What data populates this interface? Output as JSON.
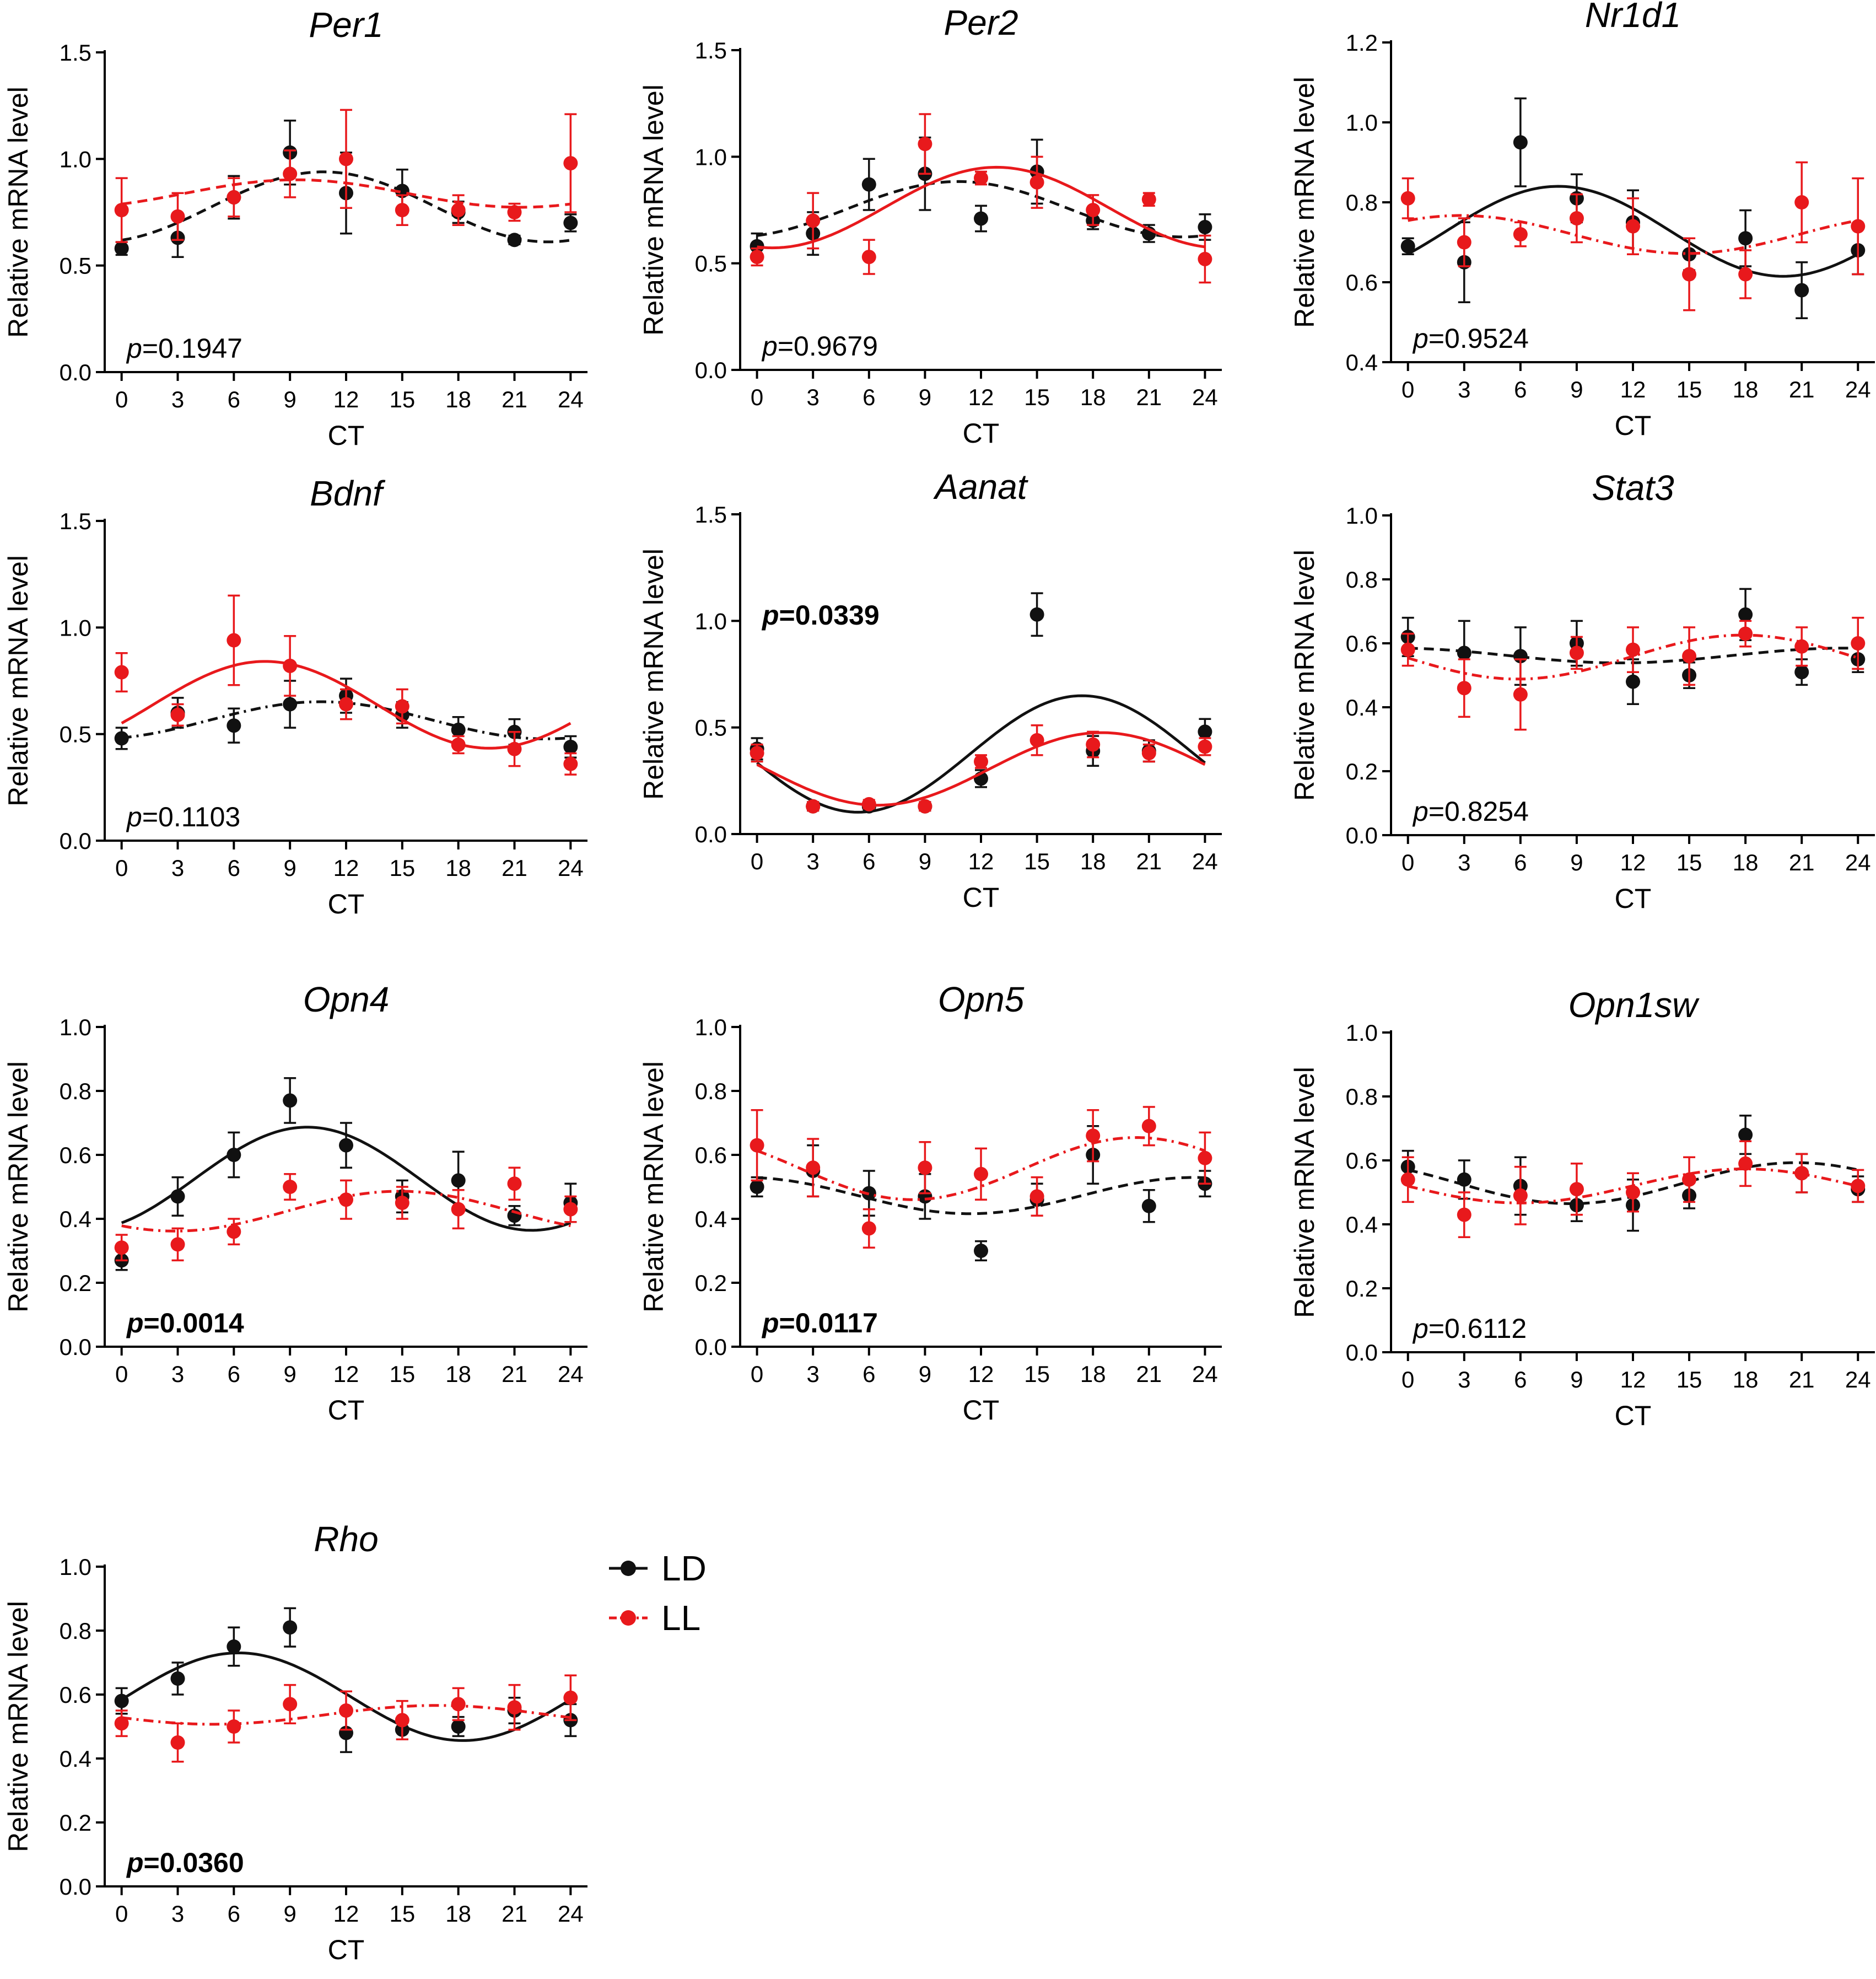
{
  "colors": {
    "LD": "#111111",
    "LL": "#e8191c"
  },
  "legend": [
    {
      "key": "LD",
      "label": "LD",
      "style": "solid"
    },
    {
      "key": "LL",
      "label": "LL",
      "style": "dashdot"
    }
  ],
  "chart_data": [
    {
      "type": "scatter",
      "title": "Per1",
      "xlabel": "CT",
      "ylabel": "Relative mRNA level",
      "x": [
        0,
        3,
        6,
        9,
        12,
        15,
        18,
        21,
        24
      ],
      "xticks": [
        0,
        3,
        6,
        9,
        12,
        15,
        18,
        21,
        24
      ],
      "ylim": [
        0,
        1.5
      ],
      "yticks": [
        0,
        0.5,
        1.0,
        1.5
      ],
      "p_prefix": "p",
      "p_value": "=0.1947",
      "p_significant": false,
      "series": [
        {
          "name": "LD",
          "values": [
            0.58,
            0.63,
            0.82,
            1.03,
            0.84,
            0.85,
            0.75,
            0.62,
            0.7
          ],
          "errors": [
            0.03,
            0.09,
            0.1,
            0.15,
            0.19,
            0.1,
            0.05,
            0.02,
            0.04
          ],
          "fit": "dashed"
        },
        {
          "name": "LL",
          "values": [
            0.76,
            0.73,
            0.82,
            0.93,
            1.0,
            0.76,
            0.76,
            0.75,
            0.98
          ],
          "errors": [
            0.15,
            0.11,
            0.09,
            0.11,
            0.23,
            0.07,
            0.07,
            0.04,
            0.23
          ],
          "fit": "dashed"
        }
      ]
    },
    {
      "type": "scatter",
      "title": "Per2",
      "xlabel": "CT",
      "ylabel": "Relative mRNA level",
      "x": [
        0,
        3,
        6,
        9,
        12,
        15,
        18,
        21,
        24
      ],
      "xticks": [
        0,
        3,
        6,
        9,
        12,
        15,
        18,
        21,
        24
      ],
      "ylim": [
        0,
        1.5
      ],
      "yticks": [
        0,
        0.5,
        1.0,
        1.5
      ],
      "p_prefix": "p",
      "p_value": "=0.9679",
      "p_significant": false,
      "series": [
        {
          "name": "LD",
          "values": [
            0.58,
            0.64,
            0.87,
            0.92,
            0.71,
            0.93,
            0.7,
            0.64,
            0.67
          ],
          "errors": [
            0.06,
            0.1,
            0.12,
            0.17,
            0.06,
            0.15,
            0.04,
            0.04,
            0.06
          ],
          "fit": "dashed"
        },
        {
          "name": "LL",
          "values": [
            0.53,
            0.7,
            0.53,
            1.06,
            0.9,
            0.88,
            0.75,
            0.8,
            0.52
          ],
          "errors": [
            0.04,
            0.13,
            0.08,
            0.14,
            0.03,
            0.12,
            0.07,
            0.03,
            0.11
          ],
          "fit": "solid"
        }
      ]
    },
    {
      "type": "scatter",
      "title": "Nr1d1",
      "xlabel": "CT",
      "ylabel": "Relative mRNA level",
      "x": [
        0,
        3,
        6,
        9,
        12,
        15,
        18,
        21,
        24
      ],
      "xticks": [
        0,
        3,
        6,
        9,
        12,
        15,
        18,
        21,
        24
      ],
      "ylim": [
        0.4,
        1.2
      ],
      "yticks": [
        0.4,
        0.6,
        0.8,
        1.0,
        1.2
      ],
      "p_prefix": "p",
      "p_value": "=0.9524",
      "p_significant": false,
      "series": [
        {
          "name": "LD",
          "values": [
            0.69,
            0.65,
            0.95,
            0.81,
            0.75,
            0.67,
            0.71,
            0.58,
            0.68
          ],
          "errors": [
            0.02,
            0.1,
            0.11,
            0.06,
            0.08,
            0.04,
            0.07,
            0.07,
            0.06
          ],
          "fit": "solid"
        },
        {
          "name": "LL",
          "values": [
            0.81,
            0.7,
            0.72,
            0.76,
            0.74,
            0.62,
            0.62,
            0.8,
            0.74
          ],
          "errors": [
            0.05,
            0.06,
            0.03,
            0.06,
            0.07,
            0.09,
            0.06,
            0.1,
            0.12
          ],
          "fit": "dashdot"
        }
      ]
    },
    {
      "type": "scatter",
      "title": "Bdnf",
      "xlabel": "CT",
      "ylabel": "Relative mRNA level",
      "x": [
        0,
        3,
        6,
        9,
        12,
        15,
        18,
        21,
        24
      ],
      "xticks": [
        0,
        3,
        6,
        9,
        12,
        15,
        18,
        21,
        24
      ],
      "ylim": [
        0,
        1.5
      ],
      "yticks": [
        0,
        0.5,
        1.0,
        1.5
      ],
      "p_prefix": "p",
      "p_value": "=0.1103",
      "p_significant": false,
      "series": [
        {
          "name": "LD",
          "values": [
            0.48,
            0.6,
            0.54,
            0.64,
            0.68,
            0.59,
            0.52,
            0.51,
            0.44
          ],
          "errors": [
            0.05,
            0.07,
            0.08,
            0.11,
            0.08,
            0.06,
            0.06,
            0.06,
            0.05
          ],
          "fit": "dashdot"
        },
        {
          "name": "LL",
          "values": [
            0.79,
            0.59,
            0.94,
            0.82,
            0.64,
            0.63,
            0.45,
            0.43,
            0.36
          ],
          "errors": [
            0.09,
            0.05,
            0.21,
            0.14,
            0.07,
            0.08,
            0.04,
            0.08,
            0.05
          ],
          "fit": "solid"
        }
      ]
    },
    {
      "type": "scatter",
      "title": "Aanat",
      "xlabel": "CT",
      "ylabel": "Relative mRNA level",
      "x": [
        0,
        3,
        6,
        9,
        12,
        15,
        18,
        21,
        24
      ],
      "xticks": [
        0,
        3,
        6,
        9,
        12,
        15,
        18,
        21,
        24
      ],
      "ylim": [
        0,
        1.5
      ],
      "yticks": [
        0,
        0.5,
        1.0,
        1.5
      ],
      "p_prefix": "p",
      "p_value": "=0.0339",
      "p_significant": true,
      "series": [
        {
          "name": "LD",
          "values": [
            0.4,
            0.13,
            0.13,
            0.13,
            0.26,
            1.03,
            0.39,
            0.39,
            0.48
          ],
          "errors": [
            0.05,
            0.02,
            0.02,
            0.02,
            0.04,
            0.1,
            0.07,
            0.05,
            0.06
          ],
          "fit": "solid"
        },
        {
          "name": "LL",
          "values": [
            0.38,
            0.13,
            0.14,
            0.13,
            0.34,
            0.44,
            0.42,
            0.38,
            0.41
          ],
          "errors": [
            0.04,
            0.02,
            0.02,
            0.02,
            0.03,
            0.07,
            0.06,
            0.04,
            0.04
          ],
          "fit": "solid"
        }
      ]
    },
    {
      "type": "scatter",
      "title": "Stat3",
      "xlabel": "CT",
      "ylabel": "Relative mRNA level",
      "x": [
        0,
        3,
        6,
        9,
        12,
        15,
        18,
        21,
        24
      ],
      "xticks": [
        0,
        3,
        6,
        9,
        12,
        15,
        18,
        21,
        24
      ],
      "ylim": [
        0,
        1.0
      ],
      "yticks": [
        0,
        0.2,
        0.4,
        0.6,
        0.8,
        1.0
      ],
      "p_prefix": "p",
      "p_value": "=0.8254",
      "p_significant": false,
      "series": [
        {
          "name": "LD",
          "values": [
            0.62,
            0.57,
            0.56,
            0.6,
            0.48,
            0.5,
            0.69,
            0.51,
            0.55
          ],
          "errors": [
            0.06,
            0.1,
            0.09,
            0.07,
            0.07,
            0.04,
            0.08,
            0.04,
            0.04
          ],
          "fit": "dashed"
        },
        {
          "name": "LL",
          "values": [
            0.58,
            0.46,
            0.44,
            0.57,
            0.58,
            0.56,
            0.63,
            0.59,
            0.6
          ],
          "errors": [
            0.05,
            0.09,
            0.11,
            0.05,
            0.07,
            0.09,
            0.04,
            0.06,
            0.08
          ],
          "fit": "dashdot"
        }
      ]
    },
    {
      "type": "scatter",
      "title": "Opn4",
      "xlabel": "CT",
      "ylabel": "Relative mRNA level",
      "x": [
        0,
        3,
        6,
        9,
        12,
        15,
        18,
        21,
        24
      ],
      "xticks": [
        0,
        3,
        6,
        9,
        12,
        15,
        18,
        21,
        24
      ],
      "ylim": [
        0,
        1.0
      ],
      "yticks": [
        0,
        0.2,
        0.4,
        0.6,
        0.8,
        1.0
      ],
      "p_prefix": "p",
      "p_value": "=0.0014",
      "p_significant": true,
      "series": [
        {
          "name": "LD",
          "values": [
            0.27,
            0.47,
            0.6,
            0.77,
            0.63,
            0.47,
            0.52,
            0.41,
            0.45
          ],
          "errors": [
            0.03,
            0.06,
            0.07,
            0.07,
            0.07,
            0.05,
            0.09,
            0.03,
            0.06
          ],
          "fit": "solid"
        },
        {
          "name": "LL",
          "values": [
            0.31,
            0.32,
            0.36,
            0.5,
            0.46,
            0.45,
            0.43,
            0.51,
            0.43
          ],
          "errors": [
            0.04,
            0.05,
            0.04,
            0.04,
            0.06,
            0.05,
            0.06,
            0.05,
            0.04
          ],
          "fit": "dashdot"
        }
      ]
    },
    {
      "type": "scatter",
      "title": "Opn5",
      "xlabel": "CT",
      "ylabel": "Relative mRNA level",
      "x": [
        0,
        3,
        6,
        9,
        12,
        15,
        18,
        21,
        24
      ],
      "xticks": [
        0,
        3,
        6,
        9,
        12,
        15,
        18,
        21,
        24
      ],
      "ylim": [
        0,
        1.0
      ],
      "yticks": [
        0,
        0.2,
        0.4,
        0.6,
        0.8,
        1.0
      ],
      "p_prefix": "p",
      "p_value": "=0.0117",
      "p_significant": true,
      "series": [
        {
          "name": "LD",
          "values": [
            0.5,
            0.55,
            0.48,
            0.47,
            0.3,
            0.46,
            0.6,
            0.44,
            0.51
          ],
          "errors": [
            0.03,
            0.08,
            0.07,
            0.07,
            0.03,
            0.05,
            0.09,
            0.05,
            0.04
          ],
          "fit": "dashed"
        },
        {
          "name": "LL",
          "values": [
            0.63,
            0.56,
            0.37,
            0.56,
            0.54,
            0.47,
            0.66,
            0.69,
            0.59
          ],
          "errors": [
            0.11,
            0.09,
            0.06,
            0.08,
            0.08,
            0.06,
            0.08,
            0.06,
            0.08
          ],
          "fit": "dashdot"
        }
      ]
    },
    {
      "type": "scatter",
      "title": "Opn1sw",
      "xlabel": "CT",
      "ylabel": "Relative mRNA level",
      "x": [
        0,
        3,
        6,
        9,
        12,
        15,
        18,
        21,
        24
      ],
      "xticks": [
        0,
        3,
        6,
        9,
        12,
        15,
        18,
        21,
        24
      ],
      "ylim": [
        0,
        1.0
      ],
      "yticks": [
        0,
        0.2,
        0.4,
        0.6,
        0.8,
        1.0
      ],
      "p_prefix": "p",
      "p_value": "=0.6112",
      "p_significant": false,
      "series": [
        {
          "name": "LD",
          "values": [
            0.58,
            0.54,
            0.52,
            0.46,
            0.46,
            0.49,
            0.68,
            0.56,
            0.51
          ],
          "errors": [
            0.05,
            0.06,
            0.09,
            0.05,
            0.08,
            0.04,
            0.06,
            0.06,
            0.04
          ],
          "fit": "dashed"
        },
        {
          "name": "LL",
          "values": [
            0.54,
            0.43,
            0.49,
            0.51,
            0.5,
            0.54,
            0.59,
            0.56,
            0.52
          ],
          "errors": [
            0.07,
            0.07,
            0.09,
            0.08,
            0.06,
            0.07,
            0.07,
            0.06,
            0.05
          ],
          "fit": "dashdot"
        }
      ]
    },
    {
      "type": "scatter",
      "title": "Rho",
      "xlabel": "CT",
      "ylabel": "Relative mRNA level",
      "x": [
        0,
        3,
        6,
        9,
        12,
        15,
        18,
        21,
        24
      ],
      "xticks": [
        0,
        3,
        6,
        9,
        12,
        15,
        18,
        21,
        24
      ],
      "ylim": [
        0,
        1.0
      ],
      "yticks": [
        0,
        0.2,
        0.4,
        0.6,
        0.8,
        1.0
      ],
      "p_prefix": "p",
      "p_value": "=0.0360",
      "p_significant": true,
      "series": [
        {
          "name": "LD",
          "values": [
            0.58,
            0.65,
            0.75,
            0.81,
            0.48,
            0.49,
            0.5,
            0.55,
            0.52
          ],
          "errors": [
            0.04,
            0.05,
            0.06,
            0.06,
            0.06,
            0.03,
            0.03,
            0.04,
            0.05
          ],
          "fit": "solid"
        },
        {
          "name": "LL",
          "values": [
            0.51,
            0.45,
            0.5,
            0.57,
            0.55,
            0.52,
            0.57,
            0.56,
            0.59
          ],
          "errors": [
            0.04,
            0.06,
            0.05,
            0.06,
            0.06,
            0.06,
            0.05,
            0.07,
            0.07
          ],
          "fit": "dashdot"
        }
      ]
    }
  ]
}
